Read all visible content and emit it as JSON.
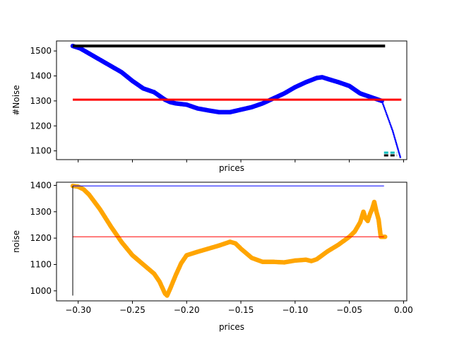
{
  "chart_data": [
    {
      "type": "line",
      "xlabel": "prices",
      "ylabel": "#Noise",
      "xlim": [
        -0.32,
        0.003
      ],
      "ylim": [
        1065,
        1540
      ],
      "xticks": [
        -0.3,
        -0.25,
        -0.2,
        -0.15,
        -0.1,
        -0.05,
        0.0
      ],
      "show_xtick_labels": false,
      "yticks": [
        1100,
        1200,
        1300,
        1400,
        1500
      ],
      "ytick_labels": [
        "1100",
        "1200",
        "1300",
        "1400",
        "1500"
      ],
      "series": [
        {
          "style": "dots",
          "color": "#0000ff",
          "x": [
            -0.305,
            -0.298,
            -0.29,
            -0.28,
            -0.27,
            -0.26,
            -0.25,
            -0.24,
            -0.23,
            -0.22,
            -0.215,
            -0.21,
            -0.2,
            -0.19,
            -0.18,
            -0.17,
            -0.16,
            -0.15,
            -0.14,
            -0.13,
            -0.12,
            -0.11,
            -0.1,
            -0.09,
            -0.08,
            -0.075,
            -0.07,
            -0.06,
            -0.05,
            -0.045,
            -0.04,
            -0.03,
            -0.02
          ],
          "y": [
            1520,
            1510,
            1490,
            1465,
            1440,
            1415,
            1380,
            1350,
            1335,
            1305,
            1295,
            1290,
            1285,
            1270,
            1262,
            1255,
            1255,
            1265,
            1275,
            1290,
            1310,
            1330,
            1355,
            1375,
            1392,
            1395,
            1388,
            1375,
            1360,
            1345,
            1330,
            1315,
            1300
          ]
        },
        {
          "style": "small-dots",
          "color": "#0000ff",
          "x": [
            -0.02,
            -0.015,
            -0.01,
            -0.006,
            -0.003
          ],
          "y": [
            1300,
            1240,
            1180,
            1120,
            1075
          ]
        },
        {
          "style": "hline",
          "color": "#000000",
          "width": 4,
          "x": [
            -0.305,
            -0.017
          ],
          "y": [
            1520,
            1520
          ]
        },
        {
          "style": "hline",
          "color": "#ff0000",
          "width": 3,
          "x": [
            -0.305,
            -0.002
          ],
          "y": [
            1305,
            1305
          ]
        },
        {
          "style": "dashed",
          "color": "#00bfbf",
          "width": 3,
          "x": [
            -0.018,
            -0.006
          ],
          "y": [
            1093,
            1093
          ]
        },
        {
          "style": "dashed",
          "color": "#000000",
          "width": 3,
          "x": [
            -0.018,
            -0.006
          ],
          "y": [
            1082,
            1082
          ]
        }
      ]
    },
    {
      "type": "line",
      "xlabel": "prices",
      "ylabel": "noise",
      "xlim": [
        -0.32,
        0.003
      ],
      "ylim": [
        962,
        1412
      ],
      "xticks": [
        -0.3,
        -0.25,
        -0.2,
        -0.15,
        -0.1,
        -0.05,
        0.0
      ],
      "show_xtick_labels": true,
      "xtick_labels": [
        "−0.30",
        "−0.25",
        "−0.20",
        "−0.15",
        "−0.10",
        "−0.05",
        "0.00"
      ],
      "yticks": [
        1000,
        1100,
        1200,
        1300,
        1400
      ],
      "ytick_labels": [
        "1000",
        "1100",
        "1200",
        "1300",
        "1400"
      ],
      "series": [
        {
          "style": "dots",
          "color": "#ffa500",
          "x": [
            -0.305,
            -0.3,
            -0.295,
            -0.29,
            -0.28,
            -0.27,
            -0.26,
            -0.25,
            -0.24,
            -0.23,
            -0.225,
            -0.22,
            -0.218,
            -0.215,
            -0.21,
            -0.205,
            -0.2,
            -0.19,
            -0.18,
            -0.17,
            -0.16,
            -0.155,
            -0.15,
            -0.14,
            -0.13,
            -0.12,
            -0.11,
            -0.1,
            -0.09,
            -0.085,
            -0.08,
            -0.07,
            -0.06,
            -0.05,
            -0.045,
            -0.04,
            -0.037,
            -0.035,
            -0.033,
            -0.031,
            -0.029,
            -0.027,
            -0.025,
            -0.023,
            -0.021,
            -0.019,
            -0.017
          ],
          "y": [
            1398,
            1395,
            1385,
            1365,
            1310,
            1245,
            1185,
            1135,
            1100,
            1065,
            1035,
            990,
            982,
            1010,
            1060,
            1105,
            1135,
            1148,
            1160,
            1172,
            1186,
            1180,
            1160,
            1125,
            1110,
            1110,
            1108,
            1115,
            1118,
            1113,
            1120,
            1150,
            1175,
            1205,
            1225,
            1260,
            1300,
            1275,
            1265,
            1290,
            1310,
            1337,
            1300,
            1270,
            1205,
            1205,
            1205
          ]
        },
        {
          "style": "hline",
          "color": "#0000ff",
          "width": 1,
          "x": [
            -0.305,
            -0.018
          ],
          "y": [
            1398,
            1398
          ]
        },
        {
          "style": "hline",
          "color": "#ff0000",
          "width": 1,
          "x": [
            -0.305,
            -0.018
          ],
          "y": [
            1205,
            1205
          ]
        },
        {
          "style": "hline",
          "color": "#000000",
          "width": 1,
          "x": [
            -0.305,
            -0.305
          ],
          "y": [
            982,
            1398
          ]
        }
      ]
    }
  ]
}
